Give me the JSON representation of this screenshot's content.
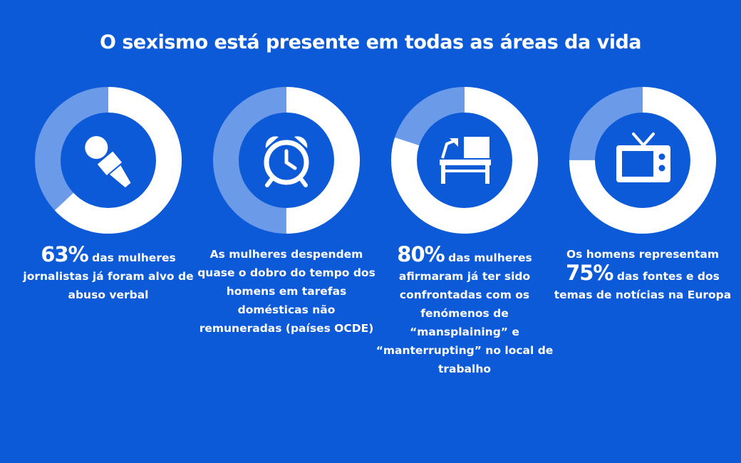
{
  "title": "O sexismo está presente em todas as áreas da vida",
  "colors": {
    "background": "#0c5ad8",
    "ring_light": "#6a9ae8",
    "ring_white": "#ffffff"
  },
  "stats": [
    {
      "icon": "microphone-icon",
      "value": "63%",
      "percent": 63,
      "text_after": " das mulheres jornalistas já foram alvo de abuso verbal"
    },
    {
      "icon": "alarm-clock-icon",
      "text_before": "As mulheres despendem quase o dobro do tempo dos homens em tarefas domésticas não remuneradas (países OCDE)",
      "percent": 50
    },
    {
      "icon": "desk-lamp-computer-icon",
      "value": "80%",
      "percent": 80,
      "text_after": " das mulheres afirmaram já ter sido confrontadas com os fenómenos de “mansplaining” e “manterrupting” no local de trabalho"
    },
    {
      "icon": "television-icon",
      "text_before": "Os homens representam",
      "value": "75%",
      "percent": 75,
      "text_after": " das fontes e dos temas de notícias na Europa"
    }
  ]
}
